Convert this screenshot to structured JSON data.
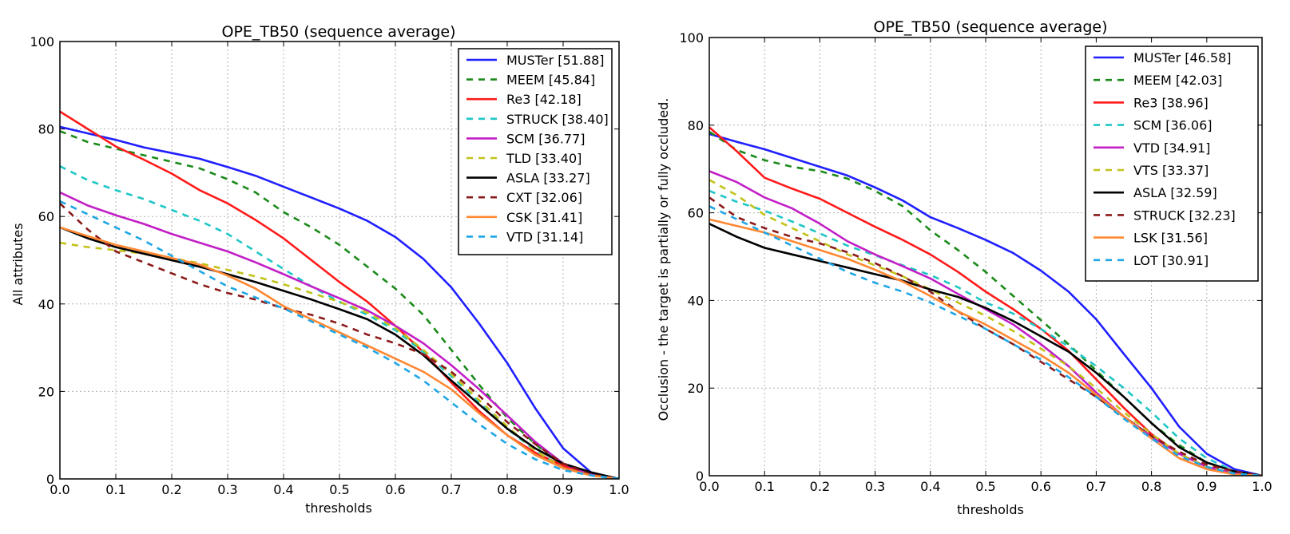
{
  "colors": {
    "blue": "#1f1fff",
    "green": "#1a8a1a",
    "red": "#ff1a1a",
    "cyan": "#1fc6c6",
    "magenta": "#c21fc6",
    "olive": "#c2c21a",
    "black": "#000000",
    "maroon": "#8b1a1a",
    "orange": "#ff8833",
    "skyblue": "#1fa6e6"
  },
  "chart_data": [
    {
      "type": "line",
      "title": "OPE_TB50 (sequence average)",
      "xlabel": "thresholds",
      "ylabel": "All attributes",
      "xlim": [
        0,
        1
      ],
      "ylim": [
        0,
        100
      ],
      "xticks": [
        "0.0",
        "0.1",
        "0.2",
        "0.3",
        "0.4",
        "0.5",
        "0.6",
        "0.7",
        "0.8",
        "0.9",
        "1.0"
      ],
      "yticks": [
        "0",
        "20",
        "40",
        "60",
        "80",
        "100"
      ],
      "grid": true,
      "legend_position": "top-right",
      "x": [
        0,
        0.05,
        0.1,
        0.15,
        0.2,
        0.25,
        0.3,
        0.35,
        0.4,
        0.45,
        0.5,
        0.55,
        0.6,
        0.65,
        0.7,
        0.75,
        0.8,
        0.85,
        0.9,
        0.95,
        1.0
      ],
      "series": [
        {
          "name": "MUSTer [51.88]",
          "color": "blue",
          "dash": "solid",
          "values": [
            80.5,
            79,
            77.5,
            75.8,
            74.5,
            73.2,
            71.3,
            69.3,
            66.8,
            64.3,
            61.8,
            59,
            55.3,
            50.3,
            43.8,
            35.5,
            26.5,
            16.2,
            7,
            1.5,
            0
          ]
        },
        {
          "name": "MEEM [45.84]",
          "color": "green",
          "dash": "dashed",
          "values": [
            79.5,
            77,
            75.5,
            74,
            72.5,
            71,
            68.5,
            65.5,
            61,
            57.5,
            53.5,
            48.5,
            43.5,
            37.5,
            29.5,
            21.5,
            14,
            8,
            3,
            1,
            0
          ]
        },
        {
          "name": "Re3 [42.18]",
          "color": "red",
          "dash": "solid",
          "values": [
            84,
            80,
            76,
            73,
            69.8,
            66,
            63,
            59.2,
            55,
            50,
            45,
            40.5,
            35,
            29,
            22,
            15.5,
            10,
            6,
            3,
            1,
            0
          ]
        },
        {
          "name": "STRUCK [38.40]",
          "color": "cyan",
          "dash": "dashed",
          "values": [
            71.5,
            68.3,
            66,
            64,
            61.5,
            59,
            56,
            52,
            48,
            44,
            40.5,
            37.5,
            34,
            29,
            23.5,
            17.5,
            11.5,
            6.5,
            2.5,
            0.8,
            0
          ]
        },
        {
          "name": "SCM [36.77]",
          "color": "magenta",
          "dash": "solid",
          "values": [
            65.5,
            62.5,
            60.3,
            58.3,
            56,
            54,
            52,
            49.5,
            46.8,
            44,
            41.3,
            38.5,
            35,
            31,
            26,
            20.5,
            14.5,
            8.5,
            3.5,
            1,
            0
          ]
        },
        {
          "name": "TLD [33.40]",
          "color": "olive",
          "dash": "dashed",
          "values": [
            54,
            53,
            52.3,
            51.5,
            50.5,
            49.3,
            47.8,
            46.3,
            44.5,
            42.5,
            40.5,
            38,
            34.5,
            29.5,
            24,
            18,
            12,
            6.5,
            2.5,
            0.8,
            0
          ]
        },
        {
          "name": "ASLA [33.27]",
          "color": "black",
          "dash": "solid",
          "values": [
            57.5,
            55,
            53,
            51.5,
            50,
            48.5,
            46.8,
            45,
            43,
            41,
            38.8,
            36.5,
            33,
            28.3,
            22.5,
            17,
            11.5,
            7,
            3.5,
            1.5,
            0
          ]
        },
        {
          "name": "CXT [32.06]",
          "color": "maroon",
          "dash": "dashed",
          "values": [
            63,
            57,
            52,
            49.5,
            47,
            44.5,
            42.5,
            41,
            39,
            37.5,
            35.5,
            33,
            31,
            28.5,
            24.5,
            19,
            13,
            8,
            3.5,
            1,
            0
          ]
        },
        {
          "name": "CSK [31.41]",
          "color": "orange",
          "dash": "solid",
          "values": [
            57.5,
            55.5,
            53.5,
            52,
            50.5,
            49,
            46.5,
            43.5,
            39.5,
            36.5,
            33.5,
            30.5,
            27.5,
            24.5,
            20.5,
            15,
            10,
            5.5,
            2.5,
            0.8,
            0
          ]
        },
        {
          "name": "VTD [31.14]",
          "color": "skyblue",
          "dash": "dashed",
          "values": [
            63.5,
            60.5,
            57.5,
            54.5,
            51,
            47.5,
            44,
            41.5,
            39,
            36,
            33,
            30,
            26.5,
            22.5,
            17.5,
            12.5,
            8,
            4.5,
            2,
            0.8,
            0
          ]
        }
      ]
    },
    {
      "type": "line",
      "title": "OPE_TB50 (sequence average)",
      "xlabel": "thresholds",
      "ylabel": "Occlusion - the target is partially or fully occluded.",
      "xlim": [
        0,
        1
      ],
      "ylim": [
        0,
        100
      ],
      "xticks": [
        "0.0",
        "0.1",
        "0.2",
        "0.3",
        "0.4",
        "0.5",
        "0.6",
        "0.7",
        "0.8",
        "0.9",
        "1.0"
      ],
      "yticks": [
        "0",
        "20",
        "40",
        "60",
        "80",
        "100"
      ],
      "grid": true,
      "legend_position": "top-right",
      "x": [
        0,
        0.05,
        0.1,
        0.15,
        0.2,
        0.25,
        0.3,
        0.35,
        0.4,
        0.45,
        0.5,
        0.55,
        0.6,
        0.65,
        0.7,
        0.75,
        0.8,
        0.85,
        0.9,
        0.95,
        1.0
      ],
      "series": [
        {
          "name": "MUSTer [46.58]",
          "color": "blue",
          "dash": "solid",
          "values": [
            78,
            76.2,
            74.5,
            72.5,
            70.5,
            68.5,
            65.8,
            62.8,
            59,
            56.5,
            53.8,
            50.8,
            46.8,
            42,
            35.7,
            27.8,
            20,
            11.2,
            5,
            1.5,
            0
          ]
        },
        {
          "name": "MEEM [42.03]",
          "color": "green",
          "dash": "dashed",
          "values": [
            78.5,
            74.3,
            72,
            70.5,
            69.5,
            67.8,
            65,
            61.5,
            56,
            51.5,
            46.5,
            41,
            35.5,
            30,
            24,
            18,
            12,
            7,
            3,
            1,
            0
          ]
        },
        {
          "name": "Re3 [38.96]",
          "color": "red",
          "dash": "solid",
          "values": [
            79.5,
            74,
            68,
            65.5,
            63.2,
            60,
            56.8,
            53.8,
            50.5,
            46.5,
            42,
            38,
            33.5,
            28.5,
            22,
            15.5,
            9.5,
            5,
            2,
            0.5,
            0
          ]
        },
        {
          "name": "SCM [36.06]",
          "color": "cyan",
          "dash": "dashed",
          "values": [
            65,
            62.5,
            60.5,
            58,
            55.3,
            52.5,
            50.3,
            48,
            45.8,
            43,
            39.5,
            37,
            33.5,
            29.5,
            25,
            20,
            14.5,
            8.5,
            4,
            1,
            0
          ]
        },
        {
          "name": "VTD [34.91]",
          "color": "magenta",
          "dash": "solid",
          "values": [
            69.5,
            67,
            63.5,
            61,
            57.5,
            53.5,
            50.5,
            47.8,
            45,
            41.5,
            38,
            34.5,
            30,
            25,
            19,
            13.5,
            9,
            5,
            2,
            0.5,
            0
          ]
        },
        {
          "name": "VTS [33.37]",
          "color": "olive",
          "dash": "dashed",
          "values": [
            67.5,
            64,
            59.5,
            56.5,
            53.5,
            50.5,
            48,
            45.5,
            42.5,
            39.5,
            36.5,
            33,
            29,
            25,
            20,
            14.5,
            9.5,
            5,
            2,
            0.5,
            0
          ]
        },
        {
          "name": "ASLA [32.59]",
          "color": "black",
          "dash": "solid",
          "values": [
            57.5,
            54.5,
            52,
            50.5,
            49,
            47.5,
            46,
            44.5,
            42.5,
            40.8,
            38.3,
            35.3,
            31.8,
            28.3,
            23.5,
            18,
            12,
            6.5,
            3,
            1,
            0
          ]
        },
        {
          "name": "STRUCK [32.23]",
          "color": "maroon",
          "dash": "dashed",
          "values": [
            63.5,
            59,
            56.5,
            54.5,
            53,
            51,
            48.5,
            45.5,
            42,
            37.5,
            33.5,
            30,
            26,
            22,
            18,
            13.5,
            9,
            5.5,
            2.5,
            1,
            0
          ]
        },
        {
          "name": "LSK [31.56]",
          "color": "orange",
          "dash": "solid",
          "values": [
            58.5,
            57,
            55.5,
            53.5,
            51.5,
            49.5,
            47,
            44.3,
            41,
            37.5,
            34.5,
            31,
            27.5,
            23.5,
            18.5,
            13.5,
            8.5,
            4,
            1.5,
            0.3,
            0
          ]
        },
        {
          "name": "LOT [30.91]",
          "color": "skyblue",
          "dash": "dashed",
          "values": [
            61.5,
            58.5,
            55.5,
            52.5,
            49.5,
            46.5,
            44,
            42,
            39.5,
            36.5,
            33.5,
            30,
            26.5,
            22.5,
            18,
            13,
            8.5,
            4.5,
            2,
            0.5,
            0
          ]
        }
      ]
    }
  ]
}
